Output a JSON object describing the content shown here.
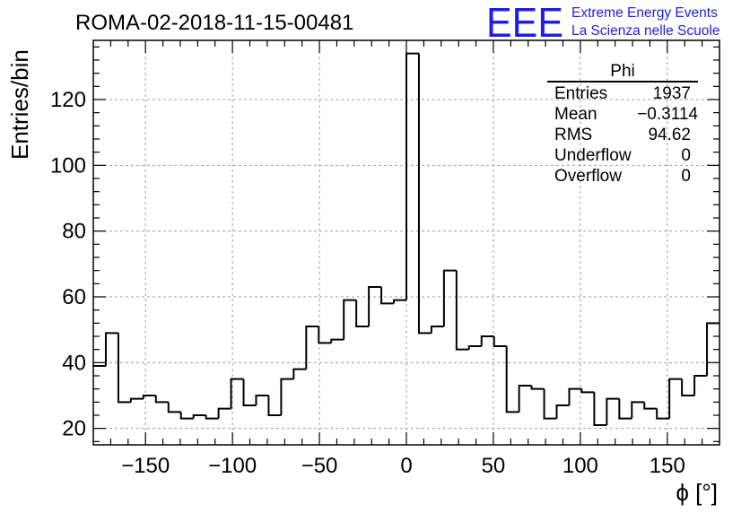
{
  "chart_data": {
    "type": "histogram",
    "title": "ROMA-02-2018-11-15-00481",
    "xlabel": "ϕ [°]",
    "ylabel": "Entries/bin",
    "xlim": [
      -180,
      180
    ],
    "ylim": [
      15,
      138
    ],
    "bin_width": 7.2,
    "grid": true,
    "x_ticks": [
      -150,
      -100,
      -50,
      0,
      50,
      100,
      150
    ],
    "x_tick_labels": [
      "−150",
      "−100",
      "−50",
      "0",
      "50",
      "100",
      "150"
    ],
    "y_ticks": [
      20,
      40,
      60,
      80,
      100,
      120
    ],
    "y_tick_labels": [
      "20",
      "40",
      "60",
      "80",
      "100",
      "120"
    ],
    "bin_edges_start": -180,
    "counts": [
      39,
      49,
      28,
      29,
      30,
      28,
      25,
      23,
      24,
      23,
      26,
      35,
      27,
      30,
      24,
      35,
      38,
      51,
      46,
      47,
      59,
      51,
      63,
      58,
      59,
      134,
      49,
      51,
      68,
      44,
      45,
      48,
      45,
      25,
      33,
      32,
      23,
      27,
      32,
      31,
      21,
      29,
      23,
      28,
      26,
      23,
      35,
      30,
      36,
      52
    ]
  },
  "stats_box": {
    "title": "Phi",
    "rows": [
      {
        "label": "Entries",
        "value": "1937"
      },
      {
        "label": "Mean",
        "value": "−0.3114"
      },
      {
        "label": "RMS",
        "value": "94.62"
      },
      {
        "label": "Underflow",
        "value": "0"
      },
      {
        "label": "Overflow",
        "value": "0"
      }
    ]
  },
  "logo": {
    "mark": "EEE",
    "line1": "Extreme Energy Events",
    "line2": "La Scienza nelle Scuole",
    "color": "#1e1ee6"
  },
  "colors": {
    "line": "#000000",
    "grid": "#a0a0a0",
    "logo": "#1e1ee6"
  }
}
